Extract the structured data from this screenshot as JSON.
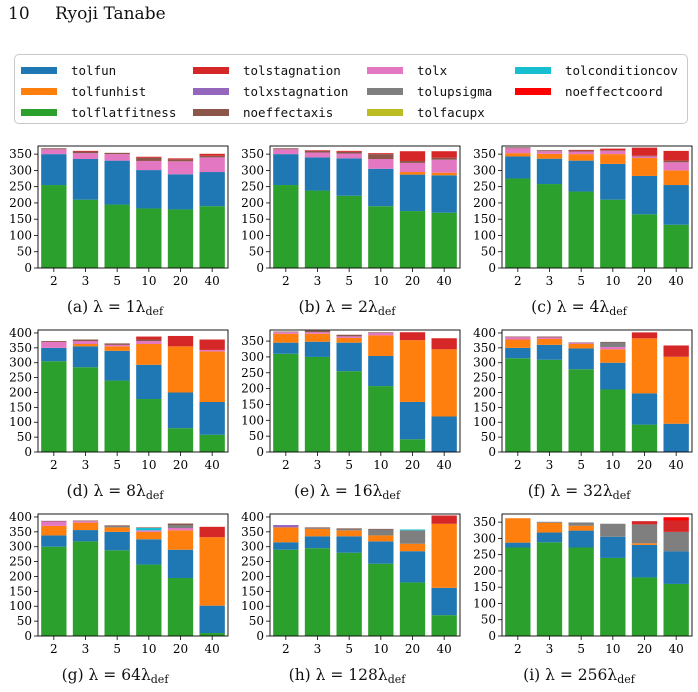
{
  "page_header": {
    "page_number": "10",
    "author": "Ryoji Tanabe"
  },
  "legend": [
    {
      "key": "tolfun",
      "label": "tolfun",
      "color": "#1f77b4"
    },
    {
      "key": "tolfunhist",
      "label": "tolfunhist",
      "color": "#ff7f0e"
    },
    {
      "key": "tolflatfitness",
      "label": "tolflatfitness",
      "color": "#2ca02c"
    },
    {
      "key": "tolstagnation",
      "label": "tolstagnation",
      "color": "#d62728"
    },
    {
      "key": "tolxstagnation",
      "label": "tolxstagnation",
      "color": "#9467bd"
    },
    {
      "key": "noeffectaxis",
      "label": "noeffectaxis",
      "color": "#8c564b"
    },
    {
      "key": "tolx",
      "label": "tolx",
      "color": "#e377c2"
    },
    {
      "key": "tolupsigma",
      "label": "tolupsigma",
      "color": "#7f7f7f"
    },
    {
      "key": "tolfacupx",
      "label": "tolfacupx",
      "color": "#bcbd22"
    },
    {
      "key": "tolconditioncov",
      "label": "tolconditioncov",
      "color": "#17becf"
    },
    {
      "key": "noeffectcoord",
      "label": "noeffectcoord",
      "color": "#ff0000"
    }
  ],
  "chart_data": [
    {
      "type": "bar",
      "stacked": true,
      "caption_prefix": "(a) λ = 1λ",
      "caption_sub": "def",
      "categories": [
        "2",
        "3",
        "5",
        "10",
        "20",
        "40"
      ],
      "yticks": [
        0,
        50,
        100,
        150,
        200,
        250,
        300,
        350
      ],
      "ylim": [
        0,
        375
      ],
      "series": [
        {
          "key": "tolflatfitness",
          "values": [
            255,
            210,
            195,
            183,
            180,
            190
          ]
        },
        {
          "key": "tolfun",
          "values": [
            95,
            125,
            135,
            118,
            108,
            105
          ]
        },
        {
          "key": "tolfunhist",
          "values": [
            0,
            0,
            0,
            0,
            0,
            0
          ]
        },
        {
          "key": "tolx",
          "values": [
            15,
            18,
            20,
            28,
            40,
            45
          ]
        },
        {
          "key": "tolupsigma",
          "values": [
            0,
            0,
            0,
            0,
            0,
            0
          ]
        },
        {
          "key": "noeffectaxis",
          "values": [
            3,
            5,
            4,
            10,
            6,
            5
          ]
        },
        {
          "key": "tolstagnation",
          "values": [
            0,
            2,
            0,
            3,
            3,
            6
          ]
        }
      ]
    },
    {
      "type": "bar",
      "stacked": true,
      "caption_prefix": "(b) λ = 2λ",
      "caption_sub": "def",
      "categories": [
        "2",
        "3",
        "5",
        "10",
        "20",
        "40"
      ],
      "yticks": [
        0,
        50,
        100,
        150,
        200,
        250,
        300,
        350
      ],
      "ylim": [
        0,
        375
      ],
      "series": [
        {
          "key": "tolflatfitness",
          "values": [
            255,
            238,
            222,
            190,
            175,
            170
          ]
        },
        {
          "key": "tolfun",
          "values": [
            95,
            102,
            115,
            115,
            112,
            115
          ]
        },
        {
          "key": "tolfunhist",
          "values": [
            0,
            0,
            0,
            0,
            8,
            8
          ]
        },
        {
          "key": "tolx",
          "values": [
            15,
            15,
            15,
            30,
            28,
            40
          ]
        },
        {
          "key": "tolupsigma",
          "values": [
            0,
            0,
            0,
            0,
            0,
            0
          ]
        },
        {
          "key": "noeffectaxis",
          "values": [
            3,
            5,
            5,
            15,
            6,
            6
          ]
        },
        {
          "key": "tolstagnation",
          "values": [
            0,
            2,
            3,
            3,
            30,
            20
          ]
        }
      ]
    },
    {
      "type": "bar",
      "stacked": true,
      "caption_prefix": "(c) λ = 4λ",
      "caption_sub": "def",
      "categories": [
        "2",
        "3",
        "5",
        "10",
        "20",
        "40"
      ],
      "yticks": [
        0,
        50,
        100,
        150,
        200,
        250,
        300,
        350
      ],
      "ylim": [
        0,
        375
      ],
      "series": [
        {
          "key": "tolflatfitness",
          "values": [
            275,
            258,
            235,
            210,
            165,
            133
          ]
        },
        {
          "key": "tolfun",
          "values": [
            68,
            78,
            95,
            110,
            118,
            122
          ]
        },
        {
          "key": "tolfunhist",
          "values": [
            10,
            15,
            20,
            30,
            55,
            45
          ]
        },
        {
          "key": "tolx",
          "values": [
            15,
            8,
            8,
            10,
            5,
            25
          ]
        },
        {
          "key": "tolupsigma",
          "values": [
            0,
            0,
            0,
            0,
            0,
            0
          ]
        },
        {
          "key": "noeffectaxis",
          "values": [
            3,
            3,
            3,
            2,
            2,
            5
          ]
        },
        {
          "key": "tolstagnation",
          "values": [
            0,
            0,
            2,
            5,
            25,
            30
          ]
        }
      ]
    },
    {
      "type": "bar",
      "stacked": true,
      "caption_prefix": "(d) λ = 8λ",
      "caption_sub": "def",
      "categories": [
        "2",
        "3",
        "5",
        "10",
        "20",
        "40"
      ],
      "yticks": [
        0,
        50,
        100,
        150,
        200,
        250,
        300,
        350,
        400
      ],
      "ylim": [
        0,
        410
      ],
      "series": [
        {
          "key": "tolflatfitness",
          "values": [
            305,
            285,
            240,
            178,
            80,
            58
          ]
        },
        {
          "key": "tolfun",
          "values": [
            45,
            70,
            100,
            115,
            120,
            110
          ]
        },
        {
          "key": "tolfunhist",
          "values": [
            0,
            8,
            15,
            70,
            155,
            170
          ]
        },
        {
          "key": "tolx",
          "values": [
            20,
            10,
            5,
            10,
            0,
            5
          ]
        },
        {
          "key": "tolupsigma",
          "values": [
            0,
            0,
            0,
            0,
            0,
            0
          ]
        },
        {
          "key": "noeffectaxis",
          "values": [
            3,
            5,
            5,
            5,
            0,
            0
          ]
        },
        {
          "key": "tolstagnation",
          "values": [
            0,
            0,
            0,
            10,
            35,
            35
          ]
        }
      ]
    },
    {
      "type": "bar",
      "stacked": true,
      "caption_prefix": "(e) λ = 16λ",
      "caption_sub": "def",
      "categories": [
        "2",
        "3",
        "5",
        "10",
        "20",
        "40"
      ],
      "yticks": [
        0,
        50,
        100,
        150,
        200,
        250,
        300,
        350
      ],
      "ylim": [
        0,
        385
      ],
      "series": [
        {
          "key": "tolflatfitness",
          "values": [
            310,
            300,
            255,
            208,
            40,
            0
          ]
        },
        {
          "key": "tolfun",
          "values": [
            35,
            48,
            90,
            95,
            118,
            112
          ]
        },
        {
          "key": "tolfunhist",
          "values": [
            28,
            25,
            15,
            65,
            195,
            212
          ]
        },
        {
          "key": "tolx",
          "values": [
            5,
            5,
            5,
            8,
            0,
            0
          ]
        },
        {
          "key": "tolupsigma",
          "values": [
            0,
            0,
            0,
            0,
            0,
            0
          ]
        },
        {
          "key": "noeffectaxis",
          "values": [
            2,
            5,
            5,
            2,
            0,
            0
          ]
        },
        {
          "key": "tolstagnation",
          "values": [
            0,
            0,
            0,
            0,
            25,
            35
          ]
        }
      ]
    },
    {
      "type": "bar",
      "stacked": true,
      "caption_prefix": "(f) λ = 32λ",
      "caption_sub": "def",
      "categories": [
        "2",
        "3",
        "5",
        "10",
        "20",
        "40"
      ],
      "yticks": [
        0,
        50,
        100,
        150,
        200,
        250,
        300,
        350,
        400
      ],
      "ylim": [
        0,
        410
      ],
      "series": [
        {
          "key": "tolflatfitness",
          "values": [
            315,
            310,
            278,
            210,
            92,
            0
          ]
        },
        {
          "key": "tolfun",
          "values": [
            35,
            50,
            70,
            90,
            105,
            95
          ]
        },
        {
          "key": "tolfunhist",
          "values": [
            28,
            20,
            15,
            45,
            185,
            225
          ]
        },
        {
          "key": "tolx",
          "values": [
            8,
            5,
            3,
            8,
            0,
            0
          ]
        },
        {
          "key": "tolupsigma",
          "values": [
            0,
            0,
            0,
            15,
            0,
            0
          ]
        },
        {
          "key": "noeffectaxis",
          "values": [
            2,
            3,
            2,
            2,
            0,
            0
          ]
        },
        {
          "key": "tolstagnation",
          "values": [
            0,
            0,
            0,
            0,
            20,
            38
          ]
        }
      ]
    },
    {
      "type": "bar",
      "stacked": true,
      "caption_prefix": "(g) λ = 64λ",
      "caption_sub": "def",
      "categories": [
        "2",
        "3",
        "5",
        "10",
        "20",
        "40"
      ],
      "yticks": [
        0,
        50,
        100,
        150,
        200,
        250,
        300,
        350,
        400
      ],
      "ylim": [
        0,
        410
      ],
      "series": [
        {
          "key": "tolflatfitness",
          "values": [
            300,
            318,
            288,
            240,
            195,
            10
          ]
        },
        {
          "key": "tolfun",
          "values": [
            38,
            38,
            62,
            85,
            95,
            92
          ]
        },
        {
          "key": "tolfunhist",
          "values": [
            32,
            25,
            15,
            25,
            65,
            230
          ]
        },
        {
          "key": "tolx",
          "values": [
            15,
            5,
            0,
            5,
            8,
            0
          ]
        },
        {
          "key": "tolconditioncov",
          "values": [
            0,
            0,
            0,
            8,
            0,
            0
          ]
        },
        {
          "key": "tolupsigma",
          "values": [
            0,
            0,
            5,
            0,
            10,
            0
          ]
        },
        {
          "key": "noeffectaxis",
          "values": [
            2,
            2,
            2,
            2,
            5,
            0
          ]
        },
        {
          "key": "tolstagnation",
          "values": [
            0,
            0,
            0,
            0,
            0,
            35
          ]
        }
      ]
    },
    {
      "type": "bar",
      "stacked": true,
      "caption_prefix": "(h) λ = 128λ",
      "caption_sub": "def",
      "categories": [
        "2",
        "3",
        "5",
        "10",
        "20",
        "40"
      ],
      "yticks": [
        0,
        50,
        100,
        150,
        200,
        250,
        300,
        350,
        400
      ],
      "ylim": [
        0,
        410
      ],
      "series": [
        {
          "key": "tolflatfitness",
          "values": [
            290,
            295,
            280,
            243,
            180,
            70
          ]
        },
        {
          "key": "tolfun",
          "values": [
            25,
            40,
            55,
            75,
            105,
            92
          ]
        },
        {
          "key": "tolfunhist",
          "values": [
            50,
            25,
            20,
            20,
            25,
            215
          ]
        },
        {
          "key": "tolx",
          "values": [
            0,
            0,
            0,
            0,
            0,
            0
          ]
        },
        {
          "key": "tolupsigma",
          "values": [
            0,
            3,
            5,
            20,
            45,
            0
          ]
        },
        {
          "key": "tolxstagnation",
          "values": [
            8,
            0,
            0,
            0,
            0,
            0
          ]
        },
        {
          "key": "noeffectaxis",
          "values": [
            0,
            2,
            2,
            2,
            0,
            0
          ]
        },
        {
          "key": "tolconditioncov",
          "values": [
            0,
            0,
            0,
            0,
            3,
            0
          ]
        },
        {
          "key": "tolstagnation",
          "values": [
            0,
            0,
            0,
            0,
            0,
            28
          ]
        }
      ]
    },
    {
      "type": "bar",
      "stacked": true,
      "caption_prefix": "(i) λ = 256λ",
      "caption_sub": "def",
      "categories": [
        "2",
        "3",
        "5",
        "10",
        "20",
        "40"
      ],
      "yticks": [
        0,
        50,
        100,
        150,
        200,
        250,
        300,
        350
      ],
      "ylim": [
        0,
        375
      ],
      "series": [
        {
          "key": "tolflatfitness",
          "values": [
            272,
            288,
            272,
            240,
            180,
            160
          ]
        },
        {
          "key": "tolfun",
          "values": [
            15,
            30,
            52,
            65,
            100,
            100
          ]
        },
        {
          "key": "tolfunhist",
          "values": [
            75,
            30,
            15,
            0,
            5,
            0
          ]
        },
        {
          "key": "tolupsigma",
          "values": [
            0,
            3,
            10,
            40,
            58,
            60
          ]
        },
        {
          "key": "tolstagnation",
          "values": [
            0,
            0,
            0,
            0,
            10,
            35
          ]
        },
        {
          "key": "noeffectcoord",
          "values": [
            0,
            0,
            0,
            0,
            0,
            10
          ]
        }
      ]
    }
  ]
}
